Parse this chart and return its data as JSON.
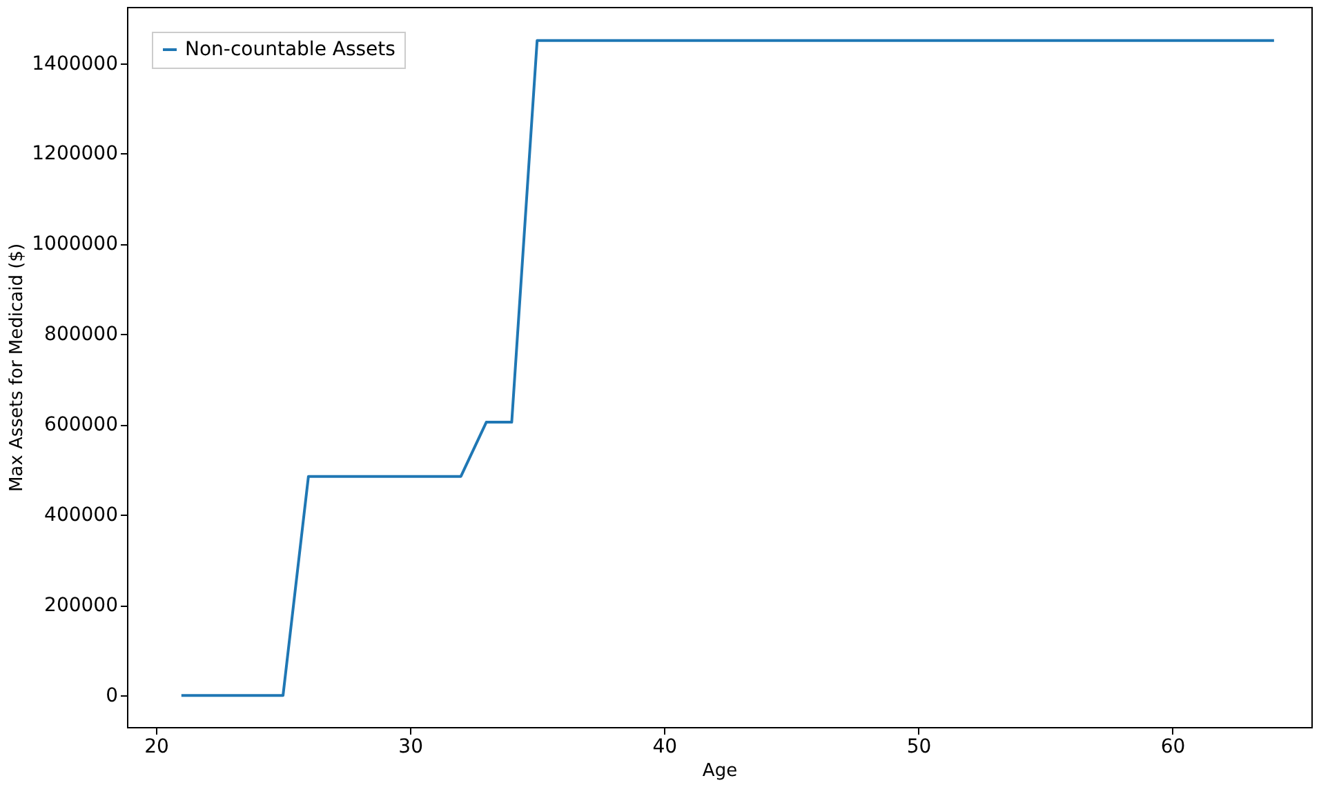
{
  "chart_data": {
    "type": "line",
    "xlabel": "Age",
    "ylabel": "Max Assets for Medicaid ($)",
    "x": [
      21,
      25,
      26,
      32,
      33,
      34,
      35,
      64
    ],
    "series": [
      {
        "name": "Non-countable Assets",
        "color": "#1f77b4",
        "values": [
          0,
          0,
          485000,
          485000,
          605000,
          605000,
          1450000,
          1450000
        ]
      }
    ],
    "xlim": [
      18.86,
      65.47
    ],
    "xticks": [
      20,
      30,
      40,
      50,
      60
    ],
    "ylim": [
      -69800,
      1524500
    ],
    "yticks": [
      0,
      200000,
      400000,
      600000,
      800000,
      1000000,
      1200000,
      1400000
    ],
    "legend": "top left",
    "grid": false,
    "marker": "none",
    "line_style": "solid"
  }
}
